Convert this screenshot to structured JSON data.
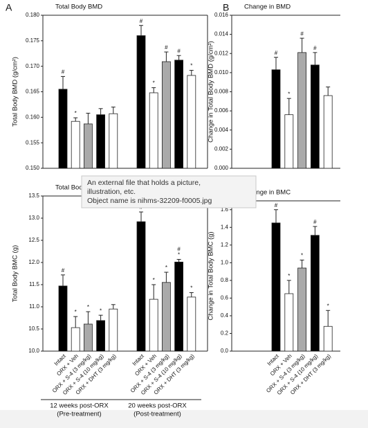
{
  "chart_data": [
    {
      "type": "bar",
      "panel": "A",
      "title": "Total Body BMD",
      "ylabel": "Total Body BMD (g/cm²)",
      "categories": [
        null,
        null,
        null,
        null,
        null,
        null,
        null,
        null,
        null,
        null
      ],
      "values": [
        0.1655,
        0.1592,
        0.1587,
        0.1605,
        0.1607,
        0.176,
        0.1648,
        0.1709,
        0.1712,
        0.1682
      ],
      "errors": [
        0.0025,
        0.0007,
        0.0021,
        0.0012,
        0.0013,
        0.002,
        0.001,
        0.0019,
        0.0009,
        0.001
      ],
      "markers": [
        [
          "#"
        ],
        [
          "*"
        ],
        [],
        [],
        [],
        [
          "#"
        ],
        [
          "*"
        ],
        [
          "#"
        ],
        [
          "#"
        ],
        [
          "*"
        ]
      ],
      "colors": [
        "#000000",
        "#ffffff",
        "#aaaaaa",
        "#000000",
        "#ffffff",
        "#000000",
        "#ffffff",
        "#aaaaaa",
        "#000000",
        "#ffffff"
      ],
      "ylim": [
        0.15,
        0.18
      ],
      "yticks": [
        {
          "value": 0.15,
          "label": "0.150"
        },
        {
          "value": 0.155,
          "label": "0.155"
        },
        {
          "value": 0.16,
          "label": "0.160"
        },
        {
          "value": 0.165,
          "label": "0.165"
        },
        {
          "value": 0.17,
          "label": "0.170"
        },
        {
          "value": 0.175,
          "label": "0.175"
        },
        {
          "value": 0.18,
          "label": "0.180"
        }
      ]
    },
    {
      "type": "bar",
      "panel": "B",
      "title": "Change in BMD",
      "ylabel": "Change in Total Body BMD (g/cm²)",
      "categories": [
        null,
        null,
        null,
        null,
        null
      ],
      "values": [
        0.0103,
        0.0056,
        0.0121,
        0.0108,
        0.0076
      ],
      "errors": [
        0.0013,
        0.0017,
        0.0015,
        0.0013,
        0.0009
      ],
      "markers": [
        [
          "#"
        ],
        [
          "*"
        ],
        [
          "#"
        ],
        [
          "#"
        ],
        []
      ],
      "colors": [
        "#000000",
        "#ffffff",
        "#aaaaaa",
        "#000000",
        "#ffffff"
      ],
      "ylim": [
        0,
        0.016
      ],
      "yticks": [
        {
          "value": 0,
          "label": "0.000"
        },
        {
          "value": 0.002,
          "label": "0.002"
        },
        {
          "value": 0.004,
          "label": "0.004"
        },
        {
          "value": 0.006,
          "label": "0.006"
        },
        {
          "value": 0.008,
          "label": "0.008"
        },
        {
          "value": 0.01,
          "label": "0.010"
        },
        {
          "value": 0.012,
          "label": "0.012"
        },
        {
          "value": 0.014,
          "label": "0.014"
        },
        {
          "value": 0.016,
          "label": "0.016"
        }
      ]
    },
    {
      "type": "bar",
      "title": "Total Body BMC",
      "ylabel": "Total Body BMC (g)",
      "categories": [
        "Intact",
        "ORX + Veh",
        "ORX + S-4 (3 mg/kg)",
        "ORX + S-4 (10 mg/kg)",
        "ORX + DHT (3 mg/kg)",
        "Intact",
        "ORX + Veh",
        "ORX + S-4 (3 mg/kg)",
        "ORX + S-4 (10 mg/kg)",
        "ORX + DHT (3 mg/kg)"
      ],
      "values": [
        11.47,
        10.53,
        10.61,
        10.69,
        10.95,
        12.92,
        11.17,
        11.55,
        12.01,
        11.22
      ],
      "errors": [
        0.25,
        0.25,
        0.28,
        0.12,
        0.1,
        0.22,
        0.33,
        0.23,
        0.06,
        0.1
      ],
      "markers": [
        [
          "#"
        ],
        [
          "*"
        ],
        [
          "*"
        ],
        [
          "*"
        ],
        [],
        [
          "#"
        ],
        [
          "*"
        ],
        [
          "*"
        ],
        [
          "#",
          "*"
        ],
        [
          "*"
        ]
      ],
      "colors": [
        "#000000",
        "#ffffff",
        "#aaaaaa",
        "#000000",
        "#ffffff",
        "#000000",
        "#ffffff",
        "#aaaaaa",
        "#000000",
        "#ffffff"
      ],
      "ylim": [
        10,
        13.5
      ],
      "yticks": [
        {
          "value": 10,
          "label": "10.0"
        },
        {
          "value": 10.5,
          "label": "10.5"
        },
        {
          "value": 11,
          "label": "11.0"
        },
        {
          "value": 11.5,
          "label": "11.5"
        },
        {
          "value": 12,
          "label": "12.0"
        },
        {
          "value": 12.5,
          "label": "12.5"
        },
        {
          "value": 13,
          "label": "13.0"
        },
        {
          "value": 13.5,
          "label": "13.5"
        }
      ],
      "groups": [
        {
          "label": "12 weeks post-ORX",
          "sublabel": "(Pre-treatment)"
        },
        {
          "label": "20 weeks post-ORX",
          "sublabel": "(Post-treatment)"
        }
      ]
    },
    {
      "type": "bar",
      "title": "Change in BMC",
      "ylabel": "Change in Total Body BMC (g)",
      "categories": [
        "Intact",
        "ORX + Veh",
        "ORX + S-4 (3 mg/kg)",
        "ORX + S-4 (10 mg/kg)",
        "ORX + DHT (3 mg/kg)"
      ],
      "values": [
        1.45,
        0.65,
        0.94,
        1.31,
        0.28
      ],
      "errors": [
        0.15,
        0.15,
        0.09,
        0.1,
        0.18
      ],
      "markers": [
        [
          "#"
        ],
        [
          "*"
        ],
        [
          "*"
        ],
        [
          "#"
        ],
        [
          "*"
        ]
      ],
      "colors": [
        "#000000",
        "#ffffff",
        "#aaaaaa",
        "#000000",
        "#ffffff"
      ],
      "ylim": [
        0,
        1.7
      ],
      "yticks": [
        {
          "value": 0,
          "label": "0.0"
        },
        {
          "value": 0.2,
          "label": "0.2"
        },
        {
          "value": 0.4,
          "label": "0.4"
        },
        {
          "value": 0.6,
          "label": "0.6"
        },
        {
          "value": 0.8,
          "label": "0.8"
        },
        {
          "value": 1,
          "label": "1.0"
        },
        {
          "value": 1.2,
          "label": "1.2"
        },
        {
          "value": 1.4,
          "label": "1.4"
        },
        {
          "value": 1.6,
          "label": "1.6"
        }
      ]
    }
  ],
  "tooltip": {
    "lines": [
      "An external file that holds a picture,",
      "illustration, etc.",
      "Object name is nihms-32209-f0005.jpg"
    ]
  }
}
